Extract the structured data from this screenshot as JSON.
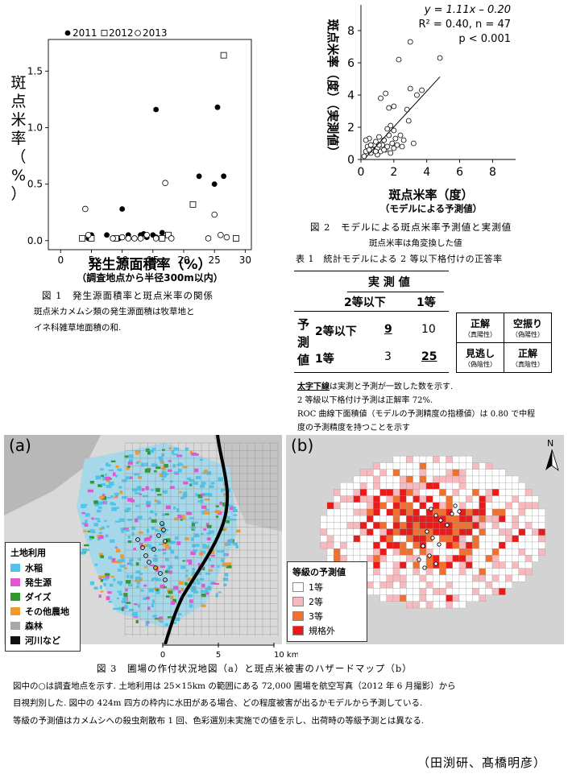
{
  "fig1": {
    "legend": {
      "y2011": "2011",
      "y2012": "2012",
      "y2013": "2013"
    },
    "ylabel_chars": [
      "斑",
      "点",
      "米",
      "率",
      "（",
      "%",
      "）"
    ],
    "xlabel": "発生源面積率（%）",
    "xsub": "（調査地点から半径300m以内）",
    "caption": "図 1　発生源面積率と斑点米率の関係",
    "note1": "斑点米カメムシ類の発生源面積は牧草地と",
    "note2": "イネ科雑草地面積の和."
  },
  "fig2": {
    "stat1": "y = 1.11x – 0.20",
    "stat2": "R² = 0.40, n = 47",
    "stat3": "p < 0.001",
    "ylabel": "斑点米率（度）（実測値）",
    "xlabel": "斑点米率（度）",
    "xsub": "（モデルによる予測値）",
    "caption": "図 2　モデルによる斑点米率予測値と実測値",
    "note": "斑点米率は角変換した値"
  },
  "table1": {
    "caption": "表 1　統計モデルによる 2 等以下格付けの正答率",
    "actual": "実 測 値",
    "col1": "2等以下",
    "col2": "1等",
    "pred_chars": [
      "予",
      "測",
      "値"
    ],
    "row1": "2等以下",
    "row2": "1等",
    "v11": "9",
    "v12": "10",
    "v21": "3",
    "v22": "25",
    "key": [
      {
        "t": "正解",
        "s": "（真陽性）"
      },
      {
        "t": "空振り",
        "s": "（偽陽性）"
      },
      {
        "t": "見逃し",
        "s": "（偽陰性）"
      },
      {
        "t": "正解",
        "s": "（真陰性）"
      }
    ],
    "n1a": "太字下線",
    "n1b": "は実測と予測が一致した数を示す.",
    "n2": "2 等級以下格付け予測は正解率 72%.",
    "n3": "ROC 曲線下面積値（モデルの予測精度の指標値）は 0.80 で中程",
    "n4": "度の予測精度を持つことを示す"
  },
  "fig3": {
    "label_a": "(a)",
    "label_b": "(b)",
    "north": "N",
    "legend_a_title": "土地利用",
    "legend_a": [
      {
        "label": "水稲",
        "color": "#4fc3e8"
      },
      {
        "label": "発生源",
        "color": "#e455d6"
      },
      {
        "label": "ダイズ",
        "color": "#2e9a2e"
      },
      {
        "label": "その他農地",
        "color": "#f09a2a"
      },
      {
        "label": "森林",
        "color": "#a8a8a8"
      },
      {
        "label": "河川など",
        "color": "#111111"
      }
    ],
    "legend_b_title": "等級の予測値",
    "legend_b": [
      {
        "label": "1等",
        "color": "#ffffff"
      },
      {
        "label": "2等",
        "color": "#f7b9bd"
      },
      {
        "label": "3等",
        "color": "#f07030"
      },
      {
        "label": "規格外",
        "color": "#e81a1a"
      }
    ],
    "scale": [
      "0",
      "5",
      "10 km"
    ],
    "caption": "図 3　圃場の作付状況地図（a）と斑点米被害のハザードマップ（b）",
    "note1": "図中の○は調査地点を示す. 土地利用は 25×15km の範囲にある 72,000 圃場を航空写真（2012 年 6 月撮影）から",
    "note2": "目視判別した. 図中の 424m 四方の枠内に水田がある場合、どの程度被害が出るかモデルから予測している.",
    "note3": "等級の予測値はカメムシへの殺虫剤散布 1 回、色彩選別未実施での値を示し、出荷時の等級予測とは異なる."
  },
  "credit": "（田渕研、髙橋明彦）",
  "chart_data": [
    {
      "type": "scatter",
      "title": "",
      "xlabel": "発生源面積率（%）（調査地点から半径300m以内）",
      "ylabel": "斑点米率（%）",
      "xlim": [
        -2,
        31
      ],
      "ylim": [
        -0.08,
        1.78
      ],
      "xticks": [
        0,
        5,
        10,
        15,
        20,
        25,
        30
      ],
      "yticks": [
        0.0,
        0.5,
        1.0,
        1.5
      ],
      "legend": "top-left",
      "series": [
        {
          "name": "2011",
          "marker": "filled-circle",
          "points": [
            [
              4.5,
              0.02
            ],
            [
              5.0,
              0.05
            ],
            [
              7.5,
              0.05
            ],
            [
              8.5,
              0.02
            ],
            [
              9.5,
              0.02
            ],
            [
              10.0,
              0.28
            ],
            [
              11.0,
              0.05
            ],
            [
              12.0,
              0.02
            ],
            [
              13.0,
              0.05
            ],
            [
              13.5,
              0.06
            ],
            [
              14.0,
              0.03
            ],
            [
              15.0,
              0.05
            ],
            [
              15.5,
              0.03
            ],
            [
              15.5,
              1.16
            ],
            [
              16.5,
              0.07
            ],
            [
              22.5,
              0.57
            ],
            [
              25.0,
              0.5
            ],
            [
              25.5,
              1.18
            ],
            [
              26.5,
              0.57
            ]
          ]
        },
        {
          "name": "2012",
          "marker": "open-square",
          "points": [
            [
              3.5,
              0.02
            ],
            [
              5.0,
              0.02
            ],
            [
              9.0,
              0.02
            ],
            [
              16.5,
              0.02
            ],
            [
              17.5,
              0.05
            ],
            [
              21.5,
              0.32
            ],
            [
              26.5,
              1.64
            ],
            [
              28.5,
              0.02
            ]
          ]
        },
        {
          "name": "2013",
          "marker": "open-circle",
          "points": [
            [
              4.0,
              0.28
            ],
            [
              4.5,
              0.05
            ],
            [
              8.5,
              0.02
            ],
            [
              10.0,
              0.03
            ],
            [
              11.0,
              0.02
            ],
            [
              12.0,
              0.02
            ],
            [
              13.0,
              0.02
            ],
            [
              14.0,
              0.05
            ],
            [
              15.5,
              0.02
            ],
            [
              17.0,
              0.51
            ],
            [
              18.0,
              0.02
            ],
            [
              24.0,
              0.02
            ],
            [
              25.0,
              0.23
            ],
            [
              26.0,
              0.05
            ],
            [
              27.0,
              0.03
            ]
          ]
        }
      ]
    },
    {
      "type": "scatter",
      "title": "",
      "xlabel": "斑点米率（度）（モデルによる予測値）",
      "ylabel": "斑点米率（度）（実測値）",
      "xlim": [
        0,
        9.4
      ],
      "ylim": [
        0,
        9.6
      ],
      "xticks": [
        0,
        2,
        4,
        6,
        8
      ],
      "yticks": [
        0,
        2,
        4,
        6,
        8
      ],
      "fit": {
        "slope": 1.11,
        "intercept": -0.2,
        "x_range": [
          0.3,
          4.8
        ]
      },
      "points": [
        [
          0.2,
          0.2
        ],
        [
          0.3,
          0.5
        ],
        [
          0.4,
          0.8
        ],
        [
          0.5,
          1.3
        ],
        [
          0.6,
          0.4
        ],
        [
          0.7,
          0.6
        ],
        [
          0.8,
          0.9
        ],
        [
          0.9,
          1.1
        ],
        [
          1.0,
          0.3
        ],
        [
          1.0,
          0.7
        ],
        [
          1.1,
          1.4
        ],
        [
          1.2,
          0.5
        ],
        [
          1.2,
          3.8
        ],
        [
          1.3,
          0.9
        ],
        [
          1.4,
          1.2
        ],
        [
          1.5,
          0.6
        ],
        [
          1.5,
          4.1
        ],
        [
          1.6,
          0.8
        ],
        [
          1.7,
          1.5
        ],
        [
          1.7,
          3.2
        ],
        [
          1.8,
          0.4
        ],
        [
          1.8,
          2.1
        ],
        [
          1.9,
          1.0
        ],
        [
          2.0,
          0.7
        ],
        [
          2.0,
          1.8
        ],
        [
          2.0,
          3.3
        ],
        [
          2.1,
          1.3
        ],
        [
          2.2,
          0.9
        ],
        [
          2.3,
          6.2
        ],
        [
          2.5,
          0.8
        ],
        [
          2.6,
          1.2
        ],
        [
          2.8,
          3.1
        ],
        [
          3.0,
          7.3
        ],
        [
          3.0,
          4.4
        ],
        [
          3.2,
          1.0
        ],
        [
          3.4,
          4.0
        ],
        [
          3.7,
          4.3
        ],
        [
          4.8,
          6.3
        ],
        [
          0.3,
          1.2
        ],
        [
          0.6,
          0.9
        ],
        [
          1.4,
          0.6
        ],
        [
          2.4,
          1.5
        ],
        [
          0.9,
          0.5
        ],
        [
          1.1,
          0.9
        ],
        [
          0.5,
          0.6
        ],
        [
          1.6,
          1.9
        ],
        [
          2.9,
          2.4
        ]
      ]
    }
  ]
}
